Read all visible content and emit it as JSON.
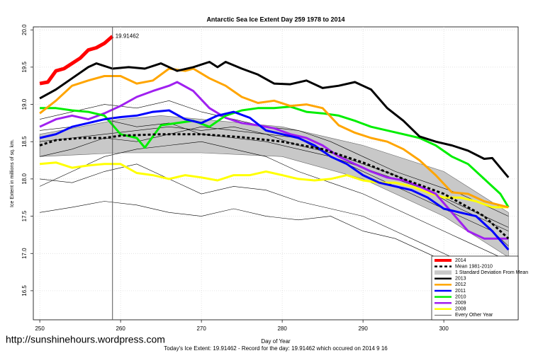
{
  "chart_data": {
    "type": "line",
    "title": "Antarctic Sea Ice Extent Day 259 1978 to 2014",
    "x_label": "Day of Year",
    "y_label": "Ice Extent in millions of sq. km.",
    "footer": "Today's Ice Extent: 19.91462  - Record for the day: 19.91462 which occured on 2014 9 16",
    "url": "http://sunshinehours.wordpress.com",
    "xlim": [
      249.2,
      309.2
    ],
    "ylim": [
      16.11,
      20.04
    ],
    "xticks": [
      250,
      260,
      270,
      280,
      290,
      300
    ],
    "yticks": [
      16.5,
      {
        "value": 17,
        "label": "17.0"
      },
      17.5,
      {
        "value": 18,
        "label": "18.0"
      },
      18.5,
      {
        "value": 19,
        "label": "19.0"
      },
      19.5,
      {
        "value": 20,
        "label": "20.0"
      }
    ],
    "grid": true,
    "legend": "bottom-right",
    "today_line": 259,
    "series": [
      {
        "name": "2014",
        "color": "#ff0000",
        "x": [
          250,
          251,
          252,
          253,
          254,
          255,
          256,
          257,
          258,
          259
        ],
        "values": [
          19.28,
          19.3,
          19.45,
          19.48,
          19.55,
          19.62,
          19.73,
          19.76,
          19.82,
          19.91462
        ],
        "value_labels": [
          null,
          null,
          null,
          null,
          null,
          null,
          null,
          null,
          null,
          "19.91462"
        ]
      },
      {
        "name": "Mean 1981-2010",
        "color": "#000000",
        "dash": true,
        "x": [
          250,
          252,
          255,
          258,
          260,
          265,
          270,
          275,
          280,
          285,
          290,
          295,
          300,
          305,
          308
        ],
        "values": [
          18.45,
          18.52,
          18.55,
          18.55,
          18.58,
          18.6,
          18.6,
          18.56,
          18.5,
          18.4,
          18.22,
          18.0,
          17.8,
          17.5,
          17.2
        ]
      },
      {
        "name": "1 Standard Deviation From Mean",
        "color": "#c8c8c8",
        "x": [
          250,
          260,
          265,
          270,
          280,
          290,
          300,
          308
        ],
        "values": [
          18.6,
          18.8,
          18.85,
          18.8,
          18.7,
          18.45,
          18.1,
          17.55
        ],
        "lower": [
          18.3,
          18.35,
          18.35,
          18.35,
          18.3,
          18.0,
          17.5,
          16.95
        ]
      },
      {
        "name": "2013",
        "color": "#000000",
        "x": [
          250,
          252,
          254,
          256,
          257,
          259,
          261,
          263,
          265,
          267,
          269,
          271,
          272,
          273,
          275,
          277,
          279,
          281,
          283,
          285,
          287,
          289,
          291,
          293,
          295,
          297,
          299,
          301,
          303,
          305,
          306,
          308
        ],
        "values": [
          19.08,
          19.2,
          19.35,
          19.5,
          19.55,
          19.48,
          19.5,
          19.48,
          19.55,
          19.45,
          19.5,
          19.57,
          19.5,
          19.57,
          19.48,
          19.4,
          19.28,
          19.27,
          19.32,
          19.22,
          19.25,
          19.3,
          19.2,
          18.95,
          18.78,
          18.57,
          18.5,
          18.45,
          18.38,
          18.27,
          18.28,
          18.02
        ]
      },
      {
        "name": "2012",
        "color": "#ffa500",
        "x": [
          250,
          252,
          254,
          256,
          258,
          260,
          262,
          264,
          266,
          268,
          269,
          271,
          273,
          275,
          277,
          279,
          281,
          283,
          285,
          287,
          289,
          291,
          293,
          295,
          297,
          299,
          301,
          303,
          305,
          308
        ],
        "values": [
          18.88,
          19.05,
          19.25,
          19.32,
          19.38,
          19.38,
          19.28,
          19.32,
          19.48,
          19.45,
          19.48,
          19.35,
          19.25,
          19.1,
          19.02,
          19.05,
          18.98,
          19.0,
          18.95,
          18.72,
          18.62,
          18.55,
          18.5,
          18.4,
          18.25,
          18.05,
          17.82,
          17.8,
          17.7,
          17.62
        ]
      },
      {
        "name": "2011",
        "color": "#0000ff",
        "x": [
          250,
          252,
          254,
          256,
          258,
          260,
          262,
          264,
          266,
          268,
          270,
          272,
          274,
          276,
          278,
          280,
          282,
          284,
          286,
          288,
          290,
          292,
          294,
          296,
          298,
          300,
          302,
          304,
          306,
          308
        ],
        "values": [
          18.55,
          18.6,
          18.7,
          18.75,
          18.8,
          18.83,
          18.85,
          18.9,
          18.92,
          18.8,
          18.75,
          18.85,
          18.9,
          18.82,
          18.65,
          18.6,
          18.55,
          18.45,
          18.3,
          18.2,
          18.05,
          17.95,
          17.9,
          17.85,
          17.75,
          17.6,
          17.55,
          17.5,
          17.3,
          17.05
        ]
      },
      {
        "name": "2010",
        "color": "#00ee00",
        "x": [
          250,
          252,
          254,
          256,
          258,
          260,
          262,
          263,
          265,
          267,
          269,
          271,
          273,
          275,
          277,
          279,
          281,
          283,
          285,
          287,
          289,
          291,
          293,
          295,
          297,
          299,
          301,
          303,
          305,
          307,
          308
        ],
        "values": [
          18.95,
          18.95,
          18.92,
          18.9,
          18.85,
          18.6,
          18.55,
          18.42,
          18.72,
          18.75,
          18.78,
          18.7,
          18.85,
          18.92,
          18.95,
          18.95,
          18.97,
          18.9,
          18.88,
          18.85,
          18.78,
          18.7,
          18.65,
          18.6,
          18.55,
          18.45,
          18.3,
          18.2,
          18.0,
          17.8,
          17.62
        ]
      },
      {
        "name": "2009",
        "color": "#a020f0",
        "x": [
          250,
          252,
          254,
          256,
          258,
          260,
          262,
          264,
          266,
          267,
          269,
          271,
          273,
          275,
          277,
          279,
          281,
          283,
          285,
          287,
          289,
          291,
          293,
          295,
          297,
          299,
          301,
          303,
          305,
          308
        ],
        "values": [
          18.7,
          18.8,
          18.85,
          18.8,
          18.88,
          18.98,
          19.1,
          19.18,
          19.25,
          19.3,
          19.18,
          18.95,
          18.82,
          18.75,
          18.72,
          18.68,
          18.6,
          18.55,
          18.45,
          18.3,
          18.2,
          18.1,
          18.02,
          17.98,
          17.9,
          17.8,
          17.55,
          17.3,
          17.2,
          17.2
        ]
      },
      {
        "name": "2008",
        "color": "#ffff00",
        "x": [
          250,
          252,
          254,
          256,
          258,
          260,
          262,
          264,
          266,
          268,
          270,
          272,
          274,
          276,
          278,
          280,
          282,
          284,
          286,
          288,
          290,
          292,
          294,
          296,
          298,
          300,
          302,
          304,
          306,
          308
        ],
        "values": [
          18.2,
          18.22,
          18.15,
          18.18,
          18.2,
          18.2,
          18.08,
          18.05,
          18.0,
          18.05,
          18.02,
          17.98,
          18.05,
          18.05,
          18.1,
          18.05,
          18.0,
          17.98,
          18.0,
          18.05,
          17.98,
          17.95,
          17.95,
          17.9,
          17.82,
          17.75,
          17.75,
          17.7,
          17.62,
          17.62
        ]
      },
      {
        "name": "Every Other Year",
        "color": "#000000",
        "x": [
          250,
          254,
          258,
          262,
          266,
          270,
          274,
          278,
          282,
          286,
          290,
          294,
          298,
          302,
          306,
          308
        ],
        "lines": [
          [
            17.55,
            17.62,
            17.7,
            17.65,
            17.55,
            17.5,
            17.6,
            17.5,
            17.45,
            17.5,
            17.3,
            17.2,
            17.0,
            16.8,
            16.55,
            16.4
          ],
          [
            18.0,
            17.95,
            18.1,
            18.2,
            18.0,
            17.8,
            17.9,
            17.85,
            17.7,
            17.6,
            17.5,
            17.3,
            17.1,
            16.9,
            16.8,
            16.75
          ],
          [
            18.65,
            18.7,
            18.8,
            18.7,
            18.75,
            18.6,
            18.55,
            18.5,
            18.4,
            18.3,
            18.15,
            18.0,
            17.85,
            17.6,
            17.4,
            17.3
          ],
          [
            18.3,
            18.4,
            18.55,
            18.5,
            18.6,
            18.7,
            18.65,
            18.6,
            18.55,
            18.3,
            18.1,
            17.9,
            17.7,
            17.5,
            17.3,
            17.1
          ],
          [
            18.8,
            18.9,
            19.0,
            18.95,
            19.05,
            18.9,
            18.8,
            18.7,
            18.65,
            18.5,
            18.3,
            18.1,
            17.95,
            17.8,
            17.6,
            17.5
          ],
          [
            17.9,
            18.1,
            18.3,
            18.4,
            18.45,
            18.5,
            18.4,
            18.3,
            18.1,
            17.95,
            17.8,
            17.6,
            17.4,
            17.2,
            17.0,
            16.9
          ],
          [
            18.5,
            18.55,
            18.6,
            18.65,
            18.7,
            18.65,
            18.7,
            18.6,
            18.45,
            18.35,
            18.2,
            18.05,
            17.85,
            17.65,
            17.45,
            17.35
          ]
        ]
      }
    ]
  }
}
